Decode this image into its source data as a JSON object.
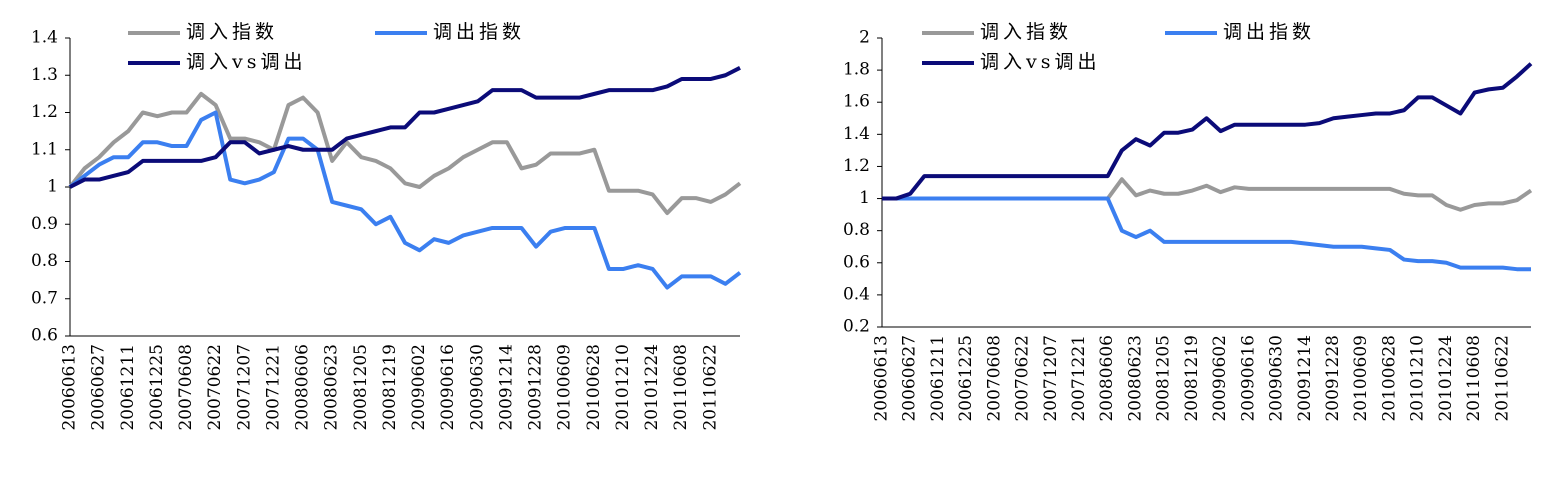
{
  "chart_data": [
    {
      "type": "line",
      "categories": [
        "20060613",
        null,
        "20060627",
        null,
        "20061211",
        null,
        "20061225",
        null,
        "20070608",
        null,
        "20070622",
        null,
        "20071207",
        null,
        "20071221",
        null,
        "20080606",
        null,
        "20080623",
        null,
        "20081205",
        null,
        "20081219",
        null,
        "20090602",
        null,
        "20090616",
        null,
        "20090630",
        null,
        "20091214",
        null,
        "20091228",
        null,
        "20100609",
        null,
        "20100628",
        null,
        "20101210",
        null,
        "20101224",
        null,
        "20110608",
        null,
        "20110622",
        null,
        null
      ],
      "series": [
        {
          "name": "调入指数",
          "color": "#999999",
          "values": [
            1.0,
            1.05,
            1.08,
            1.12,
            1.15,
            1.2,
            1.19,
            1.2,
            1.2,
            1.25,
            1.22,
            1.13,
            1.13,
            1.12,
            1.1,
            1.22,
            1.24,
            1.2,
            1.07,
            1.12,
            1.08,
            1.07,
            1.05,
            1.01,
            1.0,
            1.03,
            1.05,
            1.08,
            1.1,
            1.12,
            1.12,
            1.05,
            1.06,
            1.09,
            1.09,
            1.09,
            1.1,
            0.99,
            0.99,
            0.99,
            0.98,
            0.93,
            0.97,
            0.97,
            0.96,
            0.98,
            1.01
          ]
        },
        {
          "name": "调出指数",
          "color": "#3b7ff0",
          "values": [
            1.0,
            1.03,
            1.06,
            1.08,
            1.08,
            1.12,
            1.12,
            1.11,
            1.11,
            1.18,
            1.2,
            1.02,
            1.01,
            1.02,
            1.04,
            1.13,
            1.13,
            1.1,
            0.96,
            0.95,
            0.94,
            0.9,
            0.92,
            0.85,
            0.83,
            0.86,
            0.85,
            0.87,
            0.88,
            0.89,
            0.89,
            0.89,
            0.84,
            0.88,
            0.89,
            0.89,
            0.89,
            0.78,
            0.78,
            0.79,
            0.78,
            0.73,
            0.76,
            0.76,
            0.76,
            0.74,
            0.77
          ]
        },
        {
          "name": "调入vs调出",
          "color": "#0b0b78",
          "values": [
            1.0,
            1.02,
            1.02,
            1.03,
            1.04,
            1.07,
            1.07,
            1.07,
            1.07,
            1.07,
            1.08,
            1.12,
            1.12,
            1.09,
            1.1,
            1.11,
            1.1,
            1.1,
            1.1,
            1.13,
            1.14,
            1.15,
            1.16,
            1.16,
            1.2,
            1.2,
            1.21,
            1.22,
            1.23,
            1.26,
            1.26,
            1.26,
            1.24,
            1.24,
            1.24,
            1.24,
            1.25,
            1.26,
            1.26,
            1.26,
            1.26,
            1.27,
            1.29,
            1.29,
            1.29,
            1.3,
            1.32
          ]
        }
      ],
      "ylim": [
        0.6,
        1.4
      ],
      "yticks": [
        0.6,
        0.7,
        0.8,
        0.9,
        1,
        1.1,
        1.2,
        1.3,
        1.4
      ]
    },
    {
      "type": "line",
      "categories": [
        "20060613",
        null,
        "20060627",
        null,
        "20061211",
        null,
        "20061225",
        null,
        "20070608",
        null,
        "20070622",
        null,
        "20071207",
        null,
        "20071221",
        null,
        "20080606",
        null,
        "20080623",
        null,
        "20081205",
        null,
        "20081219",
        null,
        "20090602",
        null,
        "20090616",
        null,
        "20090630",
        null,
        "20091214",
        null,
        "20091228",
        null,
        "20100609",
        null,
        "20100628",
        null,
        "20101210",
        null,
        "20101224",
        null,
        "20110608",
        null,
        "20110622",
        null,
        null
      ],
      "series": [
        {
          "name": "调入指数",
          "color": "#999999",
          "values": [
            1.0,
            1.0,
            1.0,
            1.0,
            1.0,
            1.0,
            1.0,
            1.0,
            1.0,
            1.0,
            1.0,
            1.0,
            1.0,
            1.0,
            1.0,
            1.0,
            1.0,
            1.12,
            1.02,
            1.05,
            1.03,
            1.03,
            1.05,
            1.08,
            1.04,
            1.07,
            1.06,
            1.06,
            1.06,
            1.06,
            1.06,
            1.06,
            1.06,
            1.06,
            1.06,
            1.06,
            1.06,
            1.03,
            1.02,
            1.02,
            0.96,
            0.93,
            0.96,
            0.97,
            0.97,
            0.99,
            1.05
          ]
        },
        {
          "name": "调出指数",
          "color": "#3b7ff0",
          "values": [
            1.0,
            1.0,
            1.0,
            1.0,
            1.0,
            1.0,
            1.0,
            1.0,
            1.0,
            1.0,
            1.0,
            1.0,
            1.0,
            1.0,
            1.0,
            1.0,
            1.0,
            0.8,
            0.76,
            0.8,
            0.73,
            0.73,
            0.73,
            0.73,
            0.73,
            0.73,
            0.73,
            0.73,
            0.73,
            0.73,
            0.72,
            0.71,
            0.7,
            0.7,
            0.7,
            0.69,
            0.68,
            0.62,
            0.61,
            0.61,
            0.6,
            0.57,
            0.57,
            0.57,
            0.57,
            0.56,
            0.56
          ]
        },
        {
          "name": "调入vs调出",
          "color": "#0b0b78",
          "values": [
            1.0,
            1.0,
            1.03,
            1.14,
            1.14,
            1.14,
            1.14,
            1.14,
            1.14,
            1.14,
            1.14,
            1.14,
            1.14,
            1.14,
            1.14,
            1.14,
            1.14,
            1.3,
            1.37,
            1.33,
            1.41,
            1.41,
            1.43,
            1.5,
            1.42,
            1.46,
            1.46,
            1.46,
            1.46,
            1.46,
            1.46,
            1.47,
            1.5,
            1.51,
            1.52,
            1.53,
            1.53,
            1.55,
            1.63,
            1.63,
            1.58,
            1.53,
            1.66,
            1.68,
            1.69,
            1.76,
            1.84
          ]
        }
      ],
      "ylim": [
        0.2,
        2
      ],
      "yticks": [
        0.2,
        0.4,
        0.6,
        0.8,
        1,
        1.2,
        1.4,
        1.6,
        1.8,
        2
      ]
    }
  ]
}
